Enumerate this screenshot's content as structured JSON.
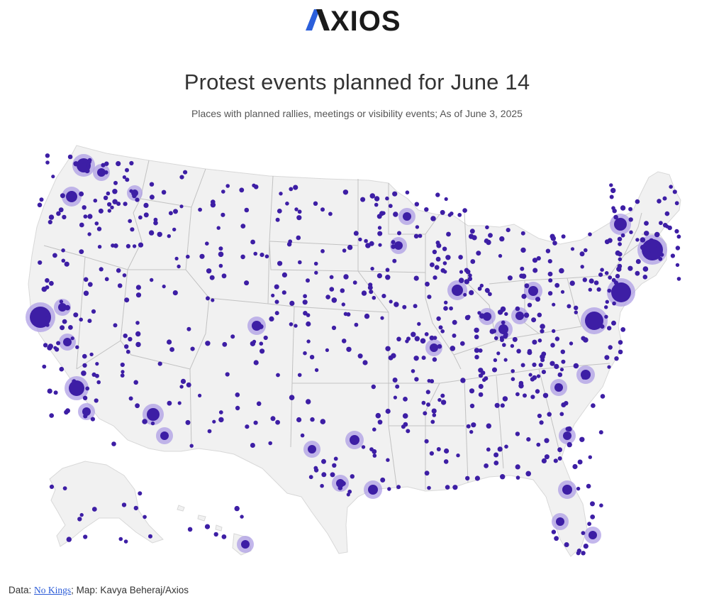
{
  "brand": {
    "logo_text": "AXIOS",
    "accent_color": "#2b5fdb",
    "text_color": "#1a1a1a"
  },
  "header": {
    "title": "Protest events planned for June 14",
    "subtitle": "Places with planned rallies, meetings or visibility events; As of June 3, 2025"
  },
  "map": {
    "land_color": "#f1f1f1",
    "border_color": "#9a9a9a",
    "dot_color": "#3d1ea5",
    "halo_color": "#a998e4"
  },
  "footer": {
    "data_prefix": "Data: ",
    "source_link": "No Kings",
    "credit": "; Map: Kavya Beheraj/Axios"
  }
}
